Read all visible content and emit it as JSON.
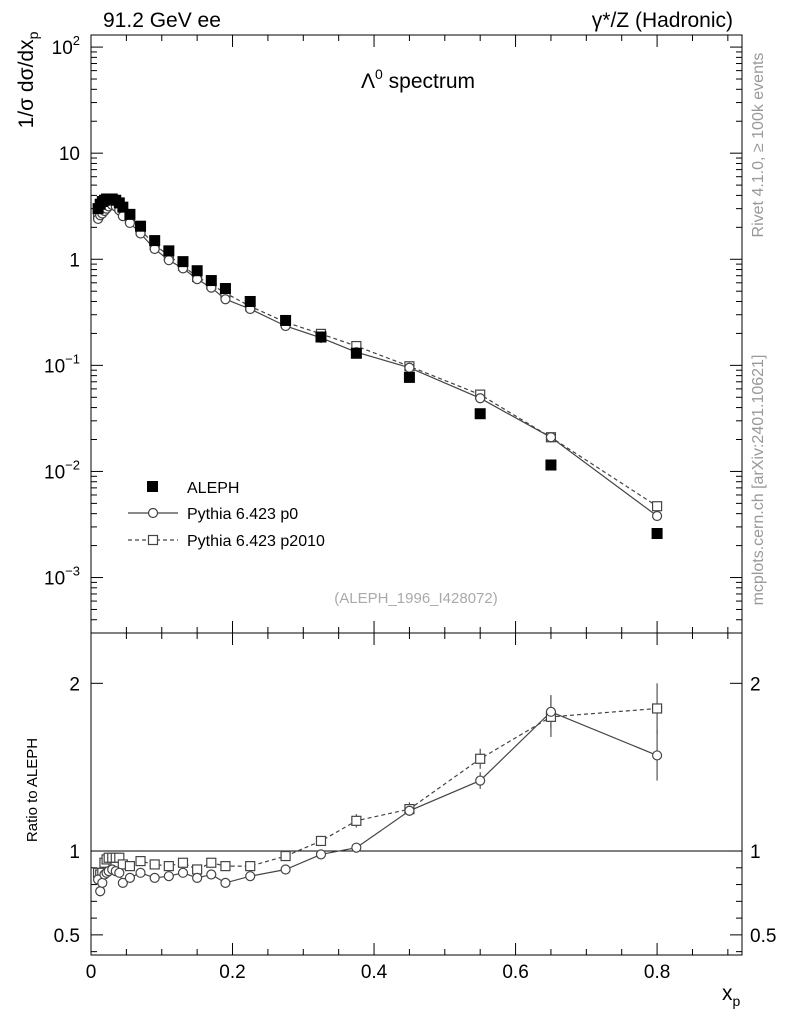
{
  "header": {
    "left": "91.2 GeV ee",
    "right": "γ*/Z (Hadronic)"
  },
  "side_labels": {
    "rivet": "Rivet 4.1.0, ≥ 100k events",
    "mcplots": "mcplots.cern.ch [arXiv:2401.10621]"
  },
  "analysis_id": "(ALEPH_1996_I428072)",
  "chart_data": [
    {
      "type": "scatter",
      "panel": "main",
      "title": "Λ⁰ spectrum",
      "ylabel": "1/σ  dσ/dx_p",
      "xlabel": "x_p",
      "yscale": "log",
      "ylim": [
        0.0003,
        130
      ],
      "xlim": [
        0,
        0.92
      ],
      "y_ticks": [
        {
          "value": 100,
          "mant": "10",
          "exp": "2"
        },
        {
          "value": 10,
          "mant": "10",
          "exp": ""
        },
        {
          "value": 1,
          "mant": "1",
          "exp": ""
        },
        {
          "value": 0.1,
          "mant": "10",
          "exp": "−1"
        },
        {
          "value": 0.01,
          "mant": "10",
          "exp": "−2"
        },
        {
          "value": 0.001,
          "mant": "10",
          "exp": "−3"
        }
      ],
      "legend": [
        {
          "label": "ALEPH",
          "style": "filled-square"
        },
        {
          "label": "Pythia 6.423 p0",
          "style": "circle-solid"
        },
        {
          "label": "Pythia 6.423 p2010",
          "style": "square-dashed"
        }
      ],
      "series": [
        {
          "name": "ALEPH",
          "x": [
            0.01,
            0.013,
            0.016,
            0.019,
            0.022,
            0.025,
            0.03,
            0.035,
            0.04,
            0.045,
            0.055,
            0.07,
            0.09,
            0.11,
            0.13,
            0.15,
            0.17,
            0.19,
            0.225,
            0.275,
            0.325,
            0.375,
            0.45,
            0.55,
            0.65,
            0.8
          ],
          "y": [
            3.0,
            3.3,
            3.5,
            3.6,
            3.7,
            3.7,
            3.7,
            3.6,
            3.4,
            3.1,
            2.65,
            2.05,
            1.5,
            1.2,
            0.95,
            0.78,
            0.63,
            0.53,
            0.4,
            0.265,
            0.185,
            0.13,
            0.077,
            0.035,
            0.0115,
            0.0026
          ]
        },
        {
          "name": "Pythia 6.423 p0",
          "x": [
            0.01,
            0.013,
            0.016,
            0.019,
            0.022,
            0.025,
            0.03,
            0.035,
            0.04,
            0.045,
            0.055,
            0.07,
            0.09,
            0.11,
            0.13,
            0.15,
            0.17,
            0.19,
            0.225,
            0.275,
            0.325,
            0.375,
            0.45,
            0.55,
            0.65,
            0.8
          ],
          "y": [
            2.4,
            2.6,
            2.7,
            2.85,
            3.0,
            3.15,
            3.25,
            3.15,
            2.9,
            2.55,
            2.2,
            1.75,
            1.25,
            0.98,
            0.82,
            0.65,
            0.54,
            0.42,
            0.34,
            0.235,
            0.182,
            0.133,
            0.095,
            0.049,
            0.021,
            0.0038
          ]
        },
        {
          "name": "Pythia 6.423 p2010",
          "x": [
            0.01,
            0.013,
            0.016,
            0.019,
            0.022,
            0.025,
            0.03,
            0.035,
            0.04,
            0.045,
            0.055,
            0.07,
            0.09,
            0.11,
            0.13,
            0.15,
            0.17,
            0.19,
            0.225,
            0.275,
            0.325,
            0.375,
            0.45,
            0.55,
            0.65,
            0.8
          ],
          "y": [
            2.6,
            2.85,
            3.05,
            3.35,
            3.5,
            3.6,
            3.55,
            3.45,
            3.1,
            2.85,
            2.4,
            1.9,
            1.37,
            1.08,
            0.87,
            0.68,
            0.58,
            0.48,
            0.36,
            0.255,
            0.198,
            0.152,
            0.098,
            0.053,
            0.021,
            0.0047
          ]
        }
      ]
    },
    {
      "type": "scatter",
      "panel": "ratio",
      "ylabel": "Ratio to ALEPH",
      "xlabel": "x_p",
      "ylim": [
        0.38,
        2.3
      ],
      "xlim": [
        0,
        0.92
      ],
      "reference_line": 1,
      "x_ticks": [
        0,
        0.2,
        0.4,
        0.6,
        0.8
      ],
      "x_tick_labels": [
        "0",
        "0.2",
        "0.4",
        "0.6",
        "0.8"
      ],
      "y_ticks": [
        0.5,
        1,
        2
      ],
      "y_tick_labels": [
        "0.5",
        "1",
        "2"
      ],
      "series": [
        {
          "name": "Pythia 6.423 p0",
          "x": [
            0.01,
            0.013,
            0.016,
            0.019,
            0.022,
            0.025,
            0.03,
            0.035,
            0.04,
            0.045,
            0.055,
            0.07,
            0.09,
            0.11,
            0.13,
            0.15,
            0.17,
            0.19,
            0.225,
            0.275,
            0.325,
            0.375,
            0.45,
            0.55,
            0.65,
            0.8
          ],
          "y": [
            0.83,
            0.76,
            0.81,
            0.86,
            0.87,
            0.88,
            0.89,
            0.88,
            0.87,
            0.81,
            0.84,
            0.87,
            0.84,
            0.85,
            0.87,
            0.84,
            0.86,
            0.81,
            0.85,
            0.89,
            0.98,
            1.02,
            1.24,
            1.42,
            1.83,
            1.57
          ],
          "err": [
            0.03,
            0.03,
            0.03,
            0.02,
            0.02,
            0.02,
            0.02,
            0.02,
            0.02,
            0.02,
            0.02,
            0.02,
            0.02,
            0.02,
            0.02,
            0.02,
            0.02,
            0.02,
            0.02,
            0.02,
            0.02,
            0.03,
            0.03,
            0.05,
            0.1,
            0.15
          ]
        },
        {
          "name": "Pythia 6.423 p2010",
          "x": [
            0.01,
            0.013,
            0.016,
            0.019,
            0.022,
            0.025,
            0.03,
            0.035,
            0.04,
            0.045,
            0.055,
            0.07,
            0.09,
            0.11,
            0.13,
            0.15,
            0.17,
            0.19,
            0.225,
            0.275,
            0.325,
            0.375,
            0.45,
            0.55,
            0.65,
            0.8
          ],
          "y": [
            0.87,
            0.86,
            0.87,
            0.93,
            0.95,
            0.96,
            0.96,
            0.96,
            0.96,
            0.92,
            0.91,
            0.94,
            0.92,
            0.91,
            0.93,
            0.89,
            0.93,
            0.91,
            0.91,
            0.97,
            1.06,
            1.18,
            1.25,
            1.55,
            1.8,
            1.85
          ],
          "err": [
            0.03,
            0.03,
            0.03,
            0.02,
            0.02,
            0.02,
            0.02,
            0.02,
            0.02,
            0.02,
            0.02,
            0.02,
            0.02,
            0.02,
            0.02,
            0.02,
            0.02,
            0.02,
            0.02,
            0.02,
            0.03,
            0.04,
            0.04,
            0.06,
            0.12,
            0.15
          ]
        }
      ]
    }
  ]
}
